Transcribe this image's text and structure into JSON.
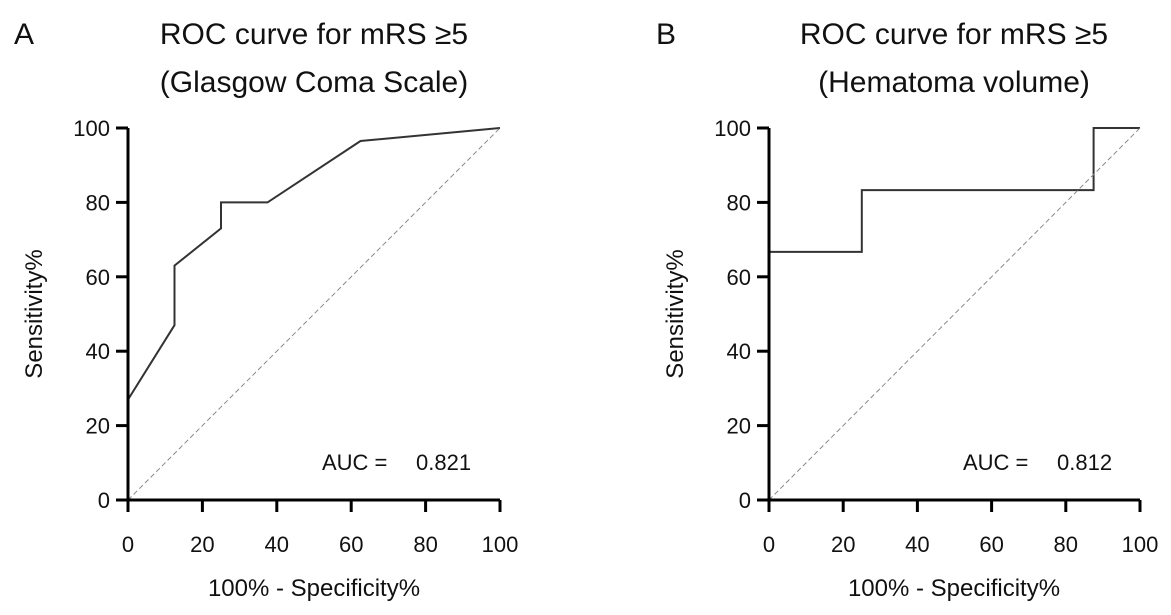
{
  "chart_data": [
    {
      "type": "line",
      "panel_label": "A",
      "title": "ROC curve for mRS ≥5",
      "subtitle": "(Glasgow Coma Scale)",
      "xlabel": "100% - Specificity%",
      "ylabel": "Sensitivity%",
      "xlim": [
        0,
        100
      ],
      "ylim": [
        0,
        100
      ],
      "xticks": [
        0,
        20,
        40,
        60,
        80,
        100
      ],
      "yticks": [
        0,
        20,
        40,
        60,
        80,
        100
      ],
      "annotation": {
        "label": "AUC =",
        "value": "0.821"
      },
      "series": [
        {
          "name": "ROC",
          "x": [
            0,
            12.5,
            12.5,
            25,
            25,
            37.5,
            62.5,
            100
          ],
          "y": [
            27,
            47,
            63,
            73,
            80,
            80,
            96.5,
            100
          ]
        },
        {
          "name": "Reference line",
          "x": [
            0,
            100
          ],
          "y": [
            0,
            100
          ]
        }
      ]
    },
    {
      "type": "line",
      "panel_label": "B",
      "title": "ROC curve for mRS ≥5",
      "subtitle": "(Hematoma volume)",
      "xlabel": "100% - Specificity%",
      "ylabel": "Sensitivity%",
      "xlim": [
        0,
        100
      ],
      "ylim": [
        0,
        100
      ],
      "xticks": [
        0,
        20,
        40,
        60,
        80,
        100
      ],
      "yticks": [
        0,
        20,
        40,
        60,
        80,
        100
      ],
      "annotation": {
        "label": "AUC =",
        "value": "0.812"
      },
      "series": [
        {
          "name": "ROC",
          "x": [
            0,
            25,
            25,
            87.5,
            87.5,
            100
          ],
          "y": [
            66.7,
            66.7,
            83.3,
            83.3,
            100,
            100
          ]
        },
        {
          "name": "Reference line",
          "x": [
            0,
            100
          ],
          "y": [
            0,
            100
          ]
        }
      ]
    }
  ]
}
